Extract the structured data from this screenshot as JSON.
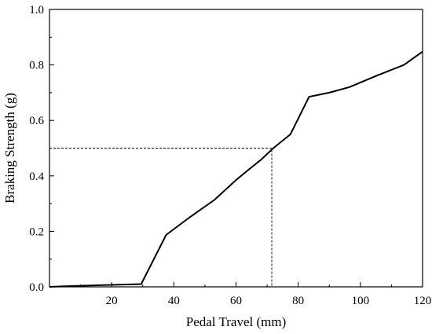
{
  "chart_data": {
    "type": "line",
    "xlabel": "Pedal Travel (mm)",
    "ylabel": "Braking Strength (g)",
    "xlim": [
      0,
      120
    ],
    "ylim": [
      0,
      1.0
    ],
    "xticks": [
      20,
      40,
      60,
      80,
      100,
      120
    ],
    "yticks": [
      0.0,
      0.2,
      0.4,
      0.6,
      0.8,
      1.0
    ],
    "x_tick_labels": [
      "20",
      "40",
      "60",
      "80",
      "100",
      "120"
    ],
    "y_tick_labels": [
      "0.0",
      "0.2",
      "0.4",
      "0.6",
      "0.8",
      "1.0"
    ],
    "grid": false,
    "series": [
      {
        "color": "#000000",
        "x": [
          0,
          5,
          10,
          20,
          29.5,
          37.5,
          45,
          53,
          60,
          63,
          68,
          72,
          77.5,
          83.5,
          90,
          96.5,
          105,
          114,
          120
        ],
        "y": [
          0.0,
          0.002,
          0.004,
          0.007,
          0.01,
          0.187,
          0.25,
          0.313,
          0.385,
          0.413,
          0.458,
          0.5,
          0.55,
          0.685,
          0.7,
          0.72,
          0.76,
          0.8,
          0.848
        ]
      }
    ],
    "reference_lines": [
      {
        "style": "dashed",
        "color": "#000000",
        "x": [
          0,
          71.5,
          71.5
        ],
        "y": [
          0.5,
          0.5,
          0
        ]
      }
    ]
  }
}
